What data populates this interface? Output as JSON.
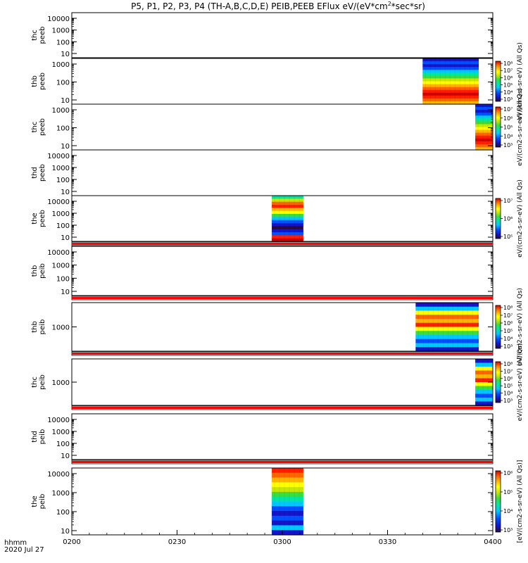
{
  "chart_data": {
    "type": "heatmap",
    "title": "P5, P1, P2, P3, P4 (TH-A,B,C,D,E) PEIB,PEEB EFlux eV/(eV*cm",
    "title_sup": "2",
    "title_tail": "*sec*sr)",
    "x_axis": {
      "range": [
        "0200",
        "0400"
      ],
      "ticks": [
        "0200",
        "0230",
        "0300",
        "0330",
        "0400"
      ],
      "corner_label_1": "hhmm",
      "corner_label_2": "2020 Jul 27"
    },
    "panels": [
      {
        "id": "thc-peeb-top",
        "label_1": "thc",
        "label_2": "peeb",
        "y_ticks": [
          "10000",
          "1000",
          "100",
          "10"
        ],
        "ylog": true,
        "ylim": [
          5,
          40000
        ],
        "blocks": []
      },
      {
        "id": "thb-peeb",
        "label_1": "thb",
        "label_2": "peeb",
        "y_ticks": [
          "1000",
          "100",
          "10"
        ],
        "ylog": true,
        "ylim": [
          5,
          5000
        ],
        "blocks": [
          {
            "x_start": "0340",
            "x_end": "0356",
            "profile": "peeb"
          }
        ],
        "colorbar": {
          "ticks": [
            "10⁸",
            "10⁷",
            "10⁶",
            "10⁵",
            "10⁴",
            "10³"
          ],
          "label": "eV/(cm2-s-sr-eV) (All Qs)"
        }
      },
      {
        "id": "thc-peeb",
        "label_1": "thc",
        "label_2": "peeb",
        "y_ticks": [
          "1000",
          "100",
          "10"
        ],
        "ylog": true,
        "ylim": [
          5,
          5000
        ],
        "blocks": [
          {
            "x_start": "0355",
            "x_end": "0400",
            "profile": "peeb"
          }
        ],
        "colorbar": {
          "ticks": [
            "10⁷",
            "10⁶",
            "10⁵",
            "10⁴",
            "10³"
          ],
          "label": "eV/(cm2-s-sr-eV) (All Qs)"
        }
      },
      {
        "id": "thd-peeb",
        "label_1": "thd",
        "label_2": "peeb",
        "y_ticks": [
          "10000",
          "1000",
          "100",
          "10"
        ],
        "ylog": true,
        "ylim": [
          5,
          40000
        ],
        "blocks": []
      },
      {
        "id": "the-peeb",
        "label_1": "the",
        "label_2": "peeb",
        "y_ticks": [
          "10000",
          "1000",
          "100",
          "10"
        ],
        "ylog": true,
        "ylim": [
          5,
          40000
        ],
        "blocks": [
          {
            "x_start": "0257",
            "x_end": "0306",
            "profile": "the_peeb"
          }
        ],
        "colorbar": {
          "ticks": [
            "10⁷",
            "10⁶",
            "10⁵"
          ],
          "label": "eV/(cm2-s-sr-eV) (All Qs)"
        }
      },
      {
        "id": "thb-peib-top",
        "label_1": "thb",
        "label_2": "peib",
        "y_ticks": [
          "10000",
          "1000",
          "100",
          "10"
        ],
        "ylog": true,
        "ylim": [
          5,
          40000
        ],
        "blocks": []
      },
      {
        "id": "thb-peib",
        "label_1": "thb",
        "label_2": "peib",
        "y_ticks": [
          "1000"
        ],
        "ylog": true,
        "ylim": [
          100,
          10000
        ],
        "blocks": [
          {
            "x_start": "0338",
            "x_end": "0356",
            "profile": "peib"
          }
        ],
        "colorbar": {
          "ticks": [
            "10⁸",
            "10⁷",
            "10⁶",
            "10⁵",
            "10⁴",
            "10³"
          ],
          "label": "eV/(cm2-s-sr-eV) (All Qs)"
        }
      },
      {
        "id": "thc-peib",
        "label_1": "thc",
        "label_2": "peib",
        "y_ticks": [
          "1000"
        ],
        "ylog": true,
        "ylim": [
          100,
          10000
        ],
        "blocks": [
          {
            "x_start": "0355",
            "x_end": "0400",
            "profile": "peib"
          }
        ],
        "colorbar": {
          "ticks": [
            "10⁸",
            "10⁷",
            "10⁶",
            "10⁵",
            "10⁴",
            "10³"
          ],
          "label": "eV/(cm2-s-sr-eV) (All Qs)"
        }
      },
      {
        "id": "thd-peib",
        "label_1": "thd",
        "label_2": "peib",
        "y_ticks": [
          "10000",
          "1000",
          "100",
          "10"
        ],
        "ylog": true,
        "ylim": [
          5,
          40000
        ],
        "blocks": []
      },
      {
        "id": "the-peib",
        "label_1": "the",
        "label_2": "peib",
        "y_ticks": [
          "10000",
          "1000",
          "100",
          "10"
        ],
        "ylog": true,
        "ylim": [
          5,
          40000
        ],
        "blocks": [
          {
            "x_start": "0257",
            "x_end": "0306",
            "profile": "the_peib"
          }
        ],
        "colorbar": {
          "ticks": [
            "10⁶",
            "10⁵",
            "10⁴",
            "10³"
          ],
          "label": "[eV/(cm2-s-sr-eV) (All Qs)]"
        }
      }
    ],
    "colorscale": [
      "#2a0a3c",
      "#1414c8",
      "#0050ff",
      "#00c8ff",
      "#00e6a0",
      "#3cdc3c",
      "#c8e600",
      "#ffff00",
      "#ffb400",
      "#ff6400",
      "#ff1e00",
      "#d20000"
    ],
    "separator_color": "#ff0000"
  }
}
